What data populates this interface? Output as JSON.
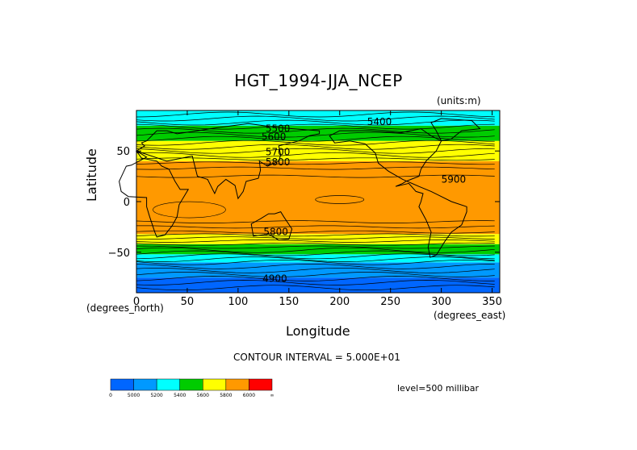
{
  "chart_data": {
    "type": "heatmap",
    "title": "HGT_1994-JJA_NCEP",
    "units": "(units:m)",
    "xlabel": "Longitude",
    "ylabel": "Latitude",
    "x_units": "(degrees_east)",
    "y_units": "(degrees_north)",
    "xlim": [
      0,
      357.5
    ],
    "ylim": [
      -90,
      90
    ],
    "x_ticks": [
      0,
      50,
      100,
      150,
      200,
      250,
      300,
      350
    ],
    "y_ticks": [
      50,
      0,
      -50
    ],
    "contour_interval_text": "CONTOUR INTERVAL = 5.000E+01",
    "level_text": "level=500 millibar",
    "colorbar": {
      "labels": [
        "0",
        "5000",
        "5200",
        "5400",
        "5600",
        "5800",
        "6000",
        "∞"
      ],
      "colors": [
        "#0066ff",
        "#0099ff",
        "#00ffff",
        "#00cc00",
        "#ffff00",
        "#ff9900",
        "#ff0000"
      ]
    },
    "bands": [
      {
        "lat": [
          -90,
          -75
        ],
        "color": "#0066ff"
      },
      {
        "lat": [
          -75,
          -60
        ],
        "color": "#0099ff"
      },
      {
        "lat": [
          -60,
          -52
        ],
        "color": "#00ffff"
      },
      {
        "lat": [
          -52,
          -42
        ],
        "color": "#00cc00"
      },
      {
        "lat": [
          -42,
          -32
        ],
        "color": "#ffff00"
      },
      {
        "lat": [
          -32,
          40
        ],
        "color": "#ff9900"
      },
      {
        "lat": [
          40,
          60
        ],
        "color": "#ffff00"
      },
      {
        "lat": [
          60,
          75
        ],
        "color": "#00cc00"
      },
      {
        "lat": [
          75,
          90
        ],
        "color": "#00ffff"
      }
    ],
    "contour_labels": [
      {
        "text": "5400",
        "lon": 227,
        "lat": 79
      },
      {
        "text": "5500",
        "lon": 127,
        "lat": 72
      },
      {
        "text": "5600",
        "lon": 123,
        "lat": 64
      },
      {
        "text": "5700",
        "lon": 127,
        "lat": 49
      },
      {
        "text": "5800",
        "lon": 127,
        "lat": 39
      },
      {
        "text": "5900",
        "lon": 300,
        "lat": 22
      },
      {
        "text": "5800",
        "lon": 125,
        "lat": -30
      },
      {
        "text": "4900",
        "lon": 124,
        "lat": -76
      }
    ]
  }
}
